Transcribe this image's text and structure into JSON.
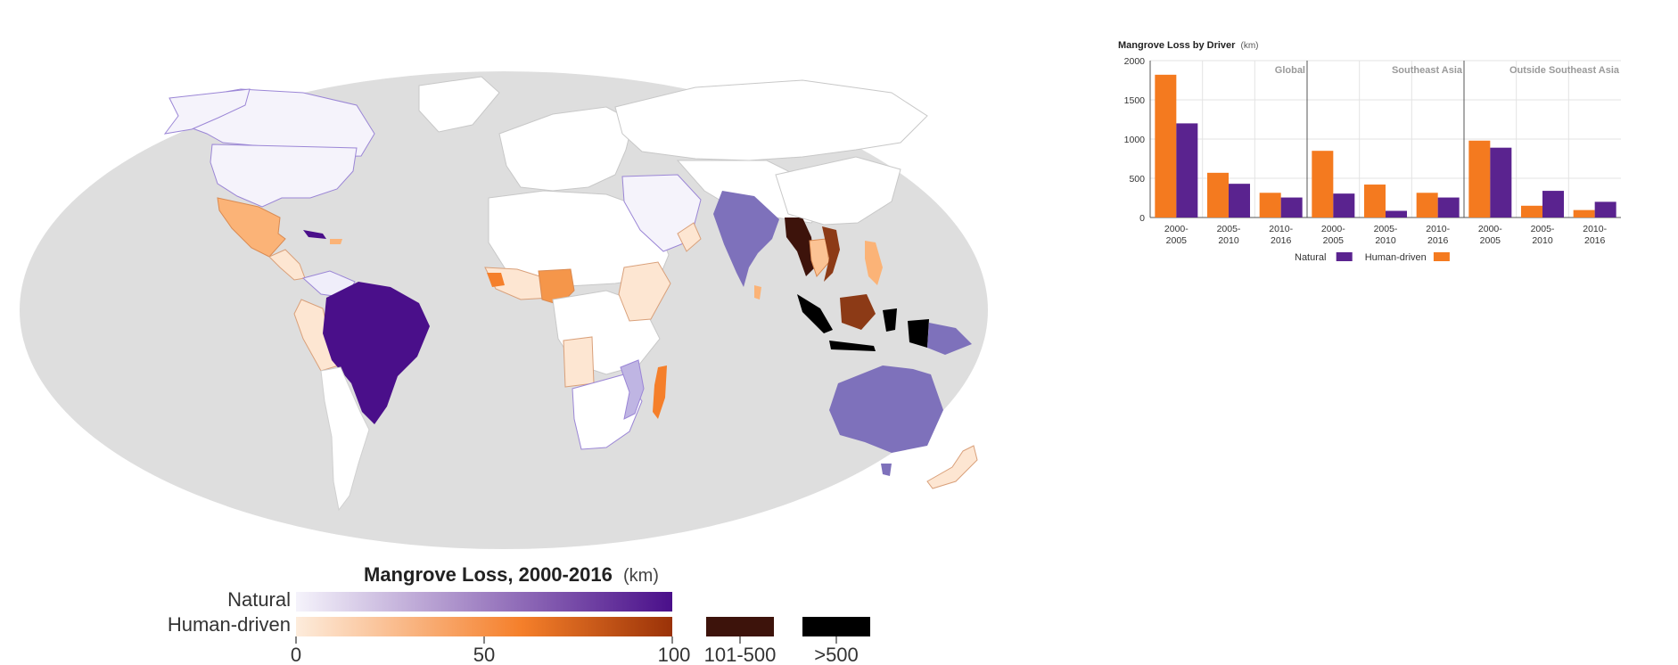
{
  "map": {
    "legend_title": "Mangrove Loss, 2000-2016",
    "legend_unit": "(km)",
    "rows": [
      {
        "label": "Natural",
        "colors": [
          "#f5f3fb",
          "#4a0f8a"
        ]
      },
      {
        "label": "Human-driven",
        "colors": [
          "#fdecdc",
          "#f57f2a",
          "#9a3208"
        ]
      }
    ],
    "scale_ticks": [
      "0",
      "50",
      "100"
    ],
    "extra_bins": [
      {
        "label": "101-500",
        "color": "#3d130b"
      },
      {
        "label": ">500",
        "color": "#000000"
      }
    ],
    "colors": {
      "ocean": "#dedede",
      "land_default": "#ffffff",
      "border": "#c8c8c8",
      "natural_border": "#8a6fd0"
    }
  },
  "chart_data": {
    "type": "bar",
    "title": "Mangrove Loss by Driver",
    "title_unit": "(km)",
    "ylim": [
      0,
      2000
    ],
    "y_ticks": [
      0,
      500,
      1000,
      1500,
      2000
    ],
    "categories": [
      "2000-\n2005",
      "2005-\n2010",
      "2010-\n2016"
    ],
    "legend_placement": "bottom",
    "grid": true,
    "series_legend": [
      {
        "name": "Natural",
        "color": "#5a238f"
      },
      {
        "name": "Human-driven",
        "color": "#f47a1f"
      }
    ],
    "panels": [
      {
        "title": "Global",
        "series": [
          {
            "name": "Human-driven",
            "values": [
              1820,
              570,
              315
            ]
          },
          {
            "name": "Natural",
            "values": [
              1200,
              430,
              255
            ]
          }
        ]
      },
      {
        "title": "Southeast Asia",
        "series": [
          {
            "name": "Human-driven",
            "values": [
              850,
              420,
              315
            ]
          },
          {
            "name": "Natural",
            "values": [
              305,
              85,
              255
            ]
          }
        ]
      },
      {
        "title": "Outside Southeast Asia",
        "series": [
          {
            "name": "Human-driven",
            "values": [
              980,
              150,
              95
            ]
          },
          {
            "name": "Natural",
            "values": [
              890,
              340,
              200
            ]
          }
        ]
      }
    ]
  }
}
